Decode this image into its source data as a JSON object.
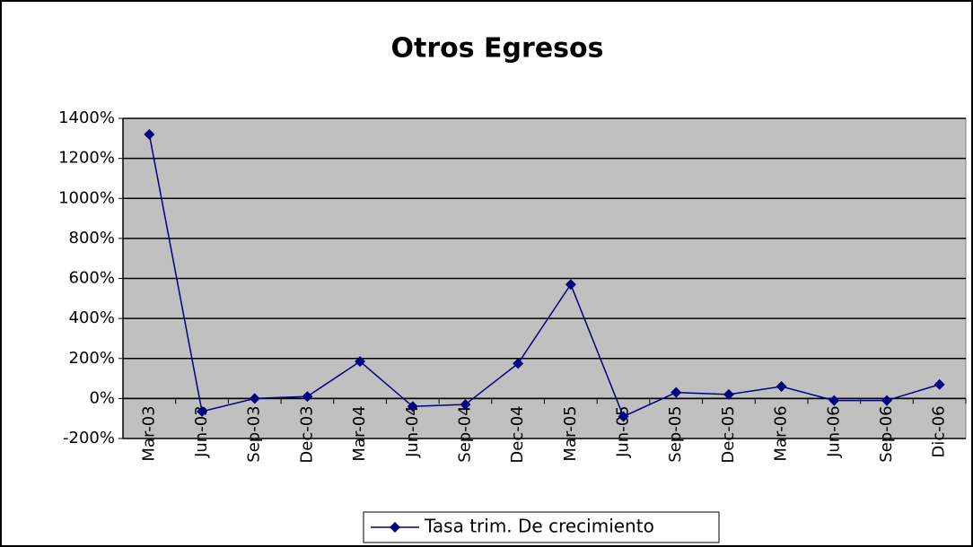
{
  "chart_data": {
    "type": "line",
    "title": "Otros Egresos",
    "categories": [
      "Mar-03",
      "Jun-03",
      "Sep-03",
      "Dec-03",
      "Mar-04",
      "Jun-04",
      "Sep-04",
      "Dec-04",
      "Mar-05",
      "Jun-05",
      "Sep-05",
      "Dec-05",
      "Mar-06",
      "Jun-06",
      "Sep-06",
      "Dic-06"
    ],
    "series": [
      {
        "name": "Tasa trim. De crecimiento",
        "color": "#000080",
        "values": [
          1320,
          -65,
          0,
          10,
          185,
          -40,
          -30,
          175,
          570,
          -90,
          30,
          20,
          60,
          -10,
          -10,
          70
        ]
      }
    ],
    "ylim": [
      -200,
      1400
    ],
    "yticks": [
      {
        "value": -200,
        "label": "-200%"
      },
      {
        "value": 0,
        "label": "0%"
      },
      {
        "value": 200,
        "label": "200%"
      },
      {
        "value": 400,
        "label": "400%"
      },
      {
        "value": 600,
        "label": "600%"
      },
      {
        "value": 800,
        "label": "800%"
      },
      {
        "value": 1000,
        "label": "1000%"
      },
      {
        "value": 1200,
        "label": "1200%"
      },
      {
        "value": 1400,
        "label": "1400%"
      }
    ],
    "grid": true,
    "legend": "bottom",
    "plot_background": "#c0c0c0"
  }
}
